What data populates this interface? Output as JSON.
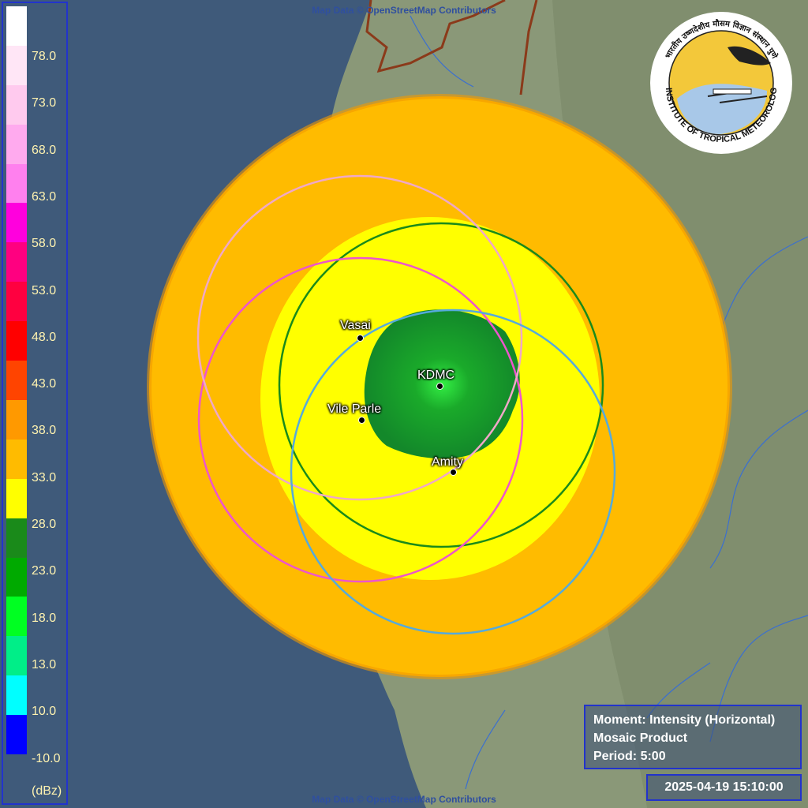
{
  "attribution": "Map Data © OpenStreetMap Contributors",
  "legend": {
    "unit": "(dBz)",
    "labels": [
      "78.0",
      "73.0",
      "68.0",
      "63.0",
      "58.0",
      "53.0",
      "48.0",
      "43.0",
      "38.0",
      "33.0",
      "28.0",
      "23.0",
      "18.0",
      "13.0",
      "10.0",
      "-10.0"
    ],
    "colors": [
      "#ffffff",
      "#ffe6f6",
      "#ffcaee",
      "#ffaaee",
      "#ff80ee",
      "#ff00dd",
      "#ff0080",
      "#ff0040",
      "#ff0000",
      "#ff4400",
      "#ff9900",
      "#ffbb00",
      "#ffff00",
      "#1a8a1a",
      "#00aa00",
      "#00ff22",
      "#00ee88",
      "#00ffff",
      "#0000ff"
    ]
  },
  "stations": [
    {
      "name": "Vasai"
    },
    {
      "name": "KDMC"
    },
    {
      "name": "Vile Parle"
    },
    {
      "name": "Amity"
    }
  ],
  "info": {
    "moment": "Moment: Intensity (Horizontal)",
    "product": "Mosaic Product",
    "period": "Period: 5:00"
  },
  "timestamp": "2025-04-19 15:10:00",
  "logo": {
    "text": "INDIAN INSTITUTE OF TROPICAL METEOROLOGY PUNE",
    "hindi": "भारतीय उष्णदेशीय मौसम विज्ञान संस्थान पुणे"
  },
  "colors": {
    "sea": "#3f5a7a",
    "land": "#8a9a7a",
    "outer_echo": "#ffbb00",
    "inner_echo": "#ffff00",
    "core_echo": "#1a9a2a",
    "ring_green": "#1a8a1a",
    "ring_pink": "#ee55cc",
    "ring_lightpink": "#f0a8c8",
    "ring_blue": "#55aadd"
  }
}
